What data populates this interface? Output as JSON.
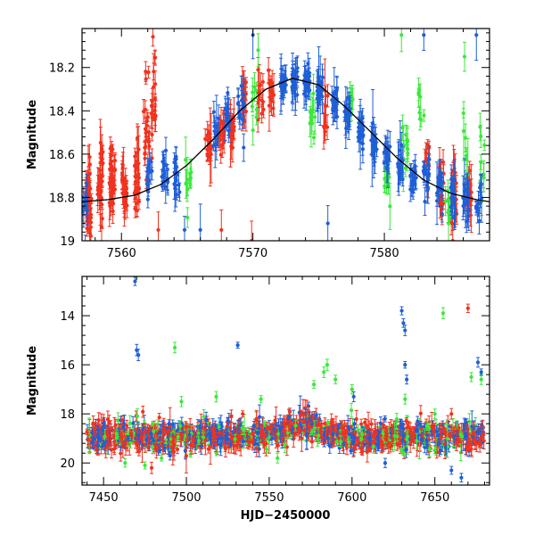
{
  "colors": {
    "blue": "#1f5fd6",
    "red": "#f0321e",
    "green": "#3ce83c",
    "axis": "#000000",
    "model": "#000000"
  },
  "chart_data": [
    {
      "type": "scatter",
      "title": "",
      "xlabel": "",
      "ylabel": "Magnitude",
      "xlim": [
        7557,
        7588
      ],
      "ylim": [
        19.0,
        18.02
      ],
      "y_inverted": true,
      "x_ticks": [
        7560,
        7570,
        7580
      ],
      "y_ticks": [
        18.2,
        18.4,
        18.6,
        18.8,
        19
      ],
      "y_tick_labels": [
        "18.2",
        "18.4",
        "18.6",
        "18.8",
        "19"
      ],
      "grid": false,
      "legend": "none",
      "model_curve": {
        "description_visible": false,
        "points": [
          [
            7557,
            18.82
          ],
          [
            7559,
            18.81
          ],
          [
            7561,
            18.79
          ],
          [
            7563,
            18.74
          ],
          [
            7565,
            18.65
          ],
          [
            7567,
            18.53
          ],
          [
            7569,
            18.4
          ],
          [
            7571,
            18.3
          ],
          [
            7573,
            18.25
          ],
          [
            7575,
            18.28
          ],
          [
            7577,
            18.38
          ],
          [
            7579,
            18.5
          ],
          [
            7581,
            18.62
          ],
          [
            7583,
            18.72
          ],
          [
            7585,
            18.78
          ],
          [
            7587,
            18.81
          ],
          [
            7588,
            18.82
          ]
        ]
      },
      "series": [
        {
          "color_key": "red",
          "clusters": [
            [
              7557.5,
              18.78,
              0.16,
              34
            ],
            [
              7558.4,
              18.74,
              0.16,
              30
            ],
            [
              7559.3,
              18.72,
              0.14,
              30
            ],
            [
              7560.2,
              18.75,
              0.14,
              28
            ],
            [
              7561.2,
              18.73,
              0.13,
              26
            ],
            [
              7561.9,
              18.55,
              0.26,
              22
            ],
            [
              7562.5,
              18.4,
              0.3,
              18
            ],
            [
              7566.6,
              18.55,
              0.06,
              16
            ],
            [
              7567.6,
              18.49,
              0.08,
              18
            ],
            [
              7568.4,
              18.47,
              0.08,
              18
            ],
            [
              7569.4,
              18.34,
              0.12,
              14
            ],
            [
              7570.6,
              18.33,
              0.12,
              14
            ],
            [
              7571.4,
              18.3,
              0.1,
              12
            ],
            [
              7575.5,
              18.43,
              0.12,
              8
            ],
            [
              7583.2,
              18.6,
              0.08,
              10
            ],
            [
              7584.3,
              18.74,
              0.12,
              20
            ],
            [
              7585.3,
              18.78,
              0.12,
              20
            ],
            [
              7586.4,
              18.8,
              0.12,
              18
            ]
          ],
          "outliers": [
            [
              7567.6,
              18.95
            ],
            [
              7569.9,
              19.0
            ],
            [
              7562.8,
              18.95
            ],
            [
              7585.2,
              19.0
            ]
          ]
        },
        {
          "color_key": "green",
          "clusters": [
            [
              7565.1,
              18.75,
              0.1,
              10
            ],
            [
              7570.1,
              18.35,
              0.1,
              8
            ],
            [
              7574.5,
              18.45,
              0.08,
              8
            ],
            [
              7577.6,
              18.35,
              0.08,
              6
            ],
            [
              7580.2,
              18.72,
              0.1,
              10
            ],
            [
              7581.6,
              18.6,
              0.12,
              10
            ],
            [
              7582.8,
              18.35,
              0.16,
              8
            ],
            [
              7584.8,
              18.85,
              0.1,
              8
            ],
            [
              7586.2,
              18.55,
              0.2,
              8
            ],
            [
              7587.5,
              18.7,
              0.2,
              8
            ]
          ],
          "outliers": [
            [
              7570.4,
              18.12
            ],
            [
              7574.6,
              18.32
            ],
            [
              7581.3,
              18.05
            ],
            [
              7586.1,
              18.15
            ]
          ]
        },
        {
          "color_key": "blue",
          "clusters": [
            [
              7557.2,
              18.82,
              0.12,
              12
            ],
            [
              7562.1,
              18.72,
              0.1,
              14
            ],
            [
              7563.3,
              18.7,
              0.1,
              16
            ],
            [
              7564.2,
              18.7,
              0.1,
              14
            ],
            [
              7567.2,
              18.48,
              0.08,
              12
            ],
            [
              7568.1,
              18.44,
              0.1,
              14
            ],
            [
              7569.1,
              18.4,
              0.1,
              14
            ],
            [
              7572.3,
              18.28,
              0.06,
              22
            ],
            [
              7573.2,
              18.26,
              0.06,
              24
            ],
            [
              7574.1,
              18.27,
              0.06,
              24
            ],
            [
              7575.1,
              18.3,
              0.06,
              20
            ],
            [
              7576.2,
              18.36,
              0.06,
              20
            ],
            [
              7577.2,
              18.42,
              0.06,
              18
            ],
            [
              7578.2,
              18.49,
              0.06,
              18
            ],
            [
              7579.2,
              18.55,
              0.06,
              18
            ],
            [
              7580.2,
              18.6,
              0.06,
              16
            ],
            [
              7581.2,
              18.66,
              0.06,
              16
            ],
            [
              7582.2,
              18.7,
              0.06,
              16
            ],
            [
              7583.2,
              18.73,
              0.08,
              16
            ],
            [
              7584.2,
              18.76,
              0.08,
              14
            ],
            [
              7585.2,
              18.78,
              0.1,
              14
            ],
            [
              7586.2,
              18.8,
              0.1,
              14
            ],
            [
              7587.2,
              18.82,
              0.12,
              12
            ]
          ],
          "outliers": [
            [
              7570.0,
              18.05
            ],
            [
              7583.0,
              18.05
            ],
            [
              7587.0,
              18.05
            ],
            [
              7575.7,
              18.92
            ],
            [
              7564.8,
              18.95
            ],
            [
              7566.0,
              18.95
            ]
          ]
        }
      ]
    },
    {
      "type": "scatter",
      "title": "",
      "xlabel": "HJD−2450000",
      "ylabel": "Magnitude",
      "xlim": [
        7437,
        7683
      ],
      "ylim": [
        20.9,
        12.4
      ],
      "y_inverted": true,
      "x_ticks": [
        7450,
        7500,
        7550,
        7600,
        7650
      ],
      "y_ticks": [
        14,
        16,
        18,
        20
      ],
      "y_tick_labels": [
        "14",
        "16",
        "18",
        "20"
      ],
      "grid": false,
      "legend": "none",
      "band": {
        "x_start": 7440,
        "x_end": 7680,
        "baseline": 18.9,
        "bump_center": 7572,
        "bump_depth": 0.5
      },
      "series": [
        {
          "color_key": "green",
          "outliers": [
            [
              7485,
              19.8
            ],
            [
              7493,
              15.3
            ],
            [
              7497,
              17.5
            ],
            [
              7518,
              17.3
            ],
            [
              7545,
              17.4
            ],
            [
              7555,
              19.8
            ],
            [
              7577,
              16.8
            ],
            [
              7583,
              16.3
            ],
            [
              7585,
              16.0
            ],
            [
              7590,
              16.6
            ],
            [
              7600,
              17.0
            ],
            [
              7632,
              17.4
            ],
            [
              7650,
              18.0
            ],
            [
              7655,
              13.9
            ],
            [
              7672,
              16.5
            ],
            [
              7678,
              16.6
            ],
            [
              7463,
              20.0
            ],
            [
              7475,
              20.1
            ]
          ]
        },
        {
          "color_key": "blue",
          "outliers": [
            [
              7469,
              12.6
            ],
            [
              7470,
              15.4
            ],
            [
              7471,
              15.6
            ],
            [
              7531,
              15.2
            ],
            [
              7630,
              13.8
            ],
            [
              7631,
              14.3
            ],
            [
              7632,
              14.6
            ],
            [
              7632,
              16.0
            ],
            [
              7633,
              16.6
            ],
            [
              7676,
              15.9
            ],
            [
              7678,
              16.3
            ],
            [
              7620,
              20.0
            ],
            [
              7601,
              17.3
            ],
            [
              7660,
              20.3
            ],
            [
              7666,
              20.6
            ]
          ]
        },
        {
          "color_key": "red",
          "outliers": [
            [
              7670,
              13.7
            ],
            [
              7660,
              18.0
            ],
            [
              7534,
              18.0
            ],
            [
              7479,
              20.2
            ]
          ]
        }
      ]
    }
  ]
}
